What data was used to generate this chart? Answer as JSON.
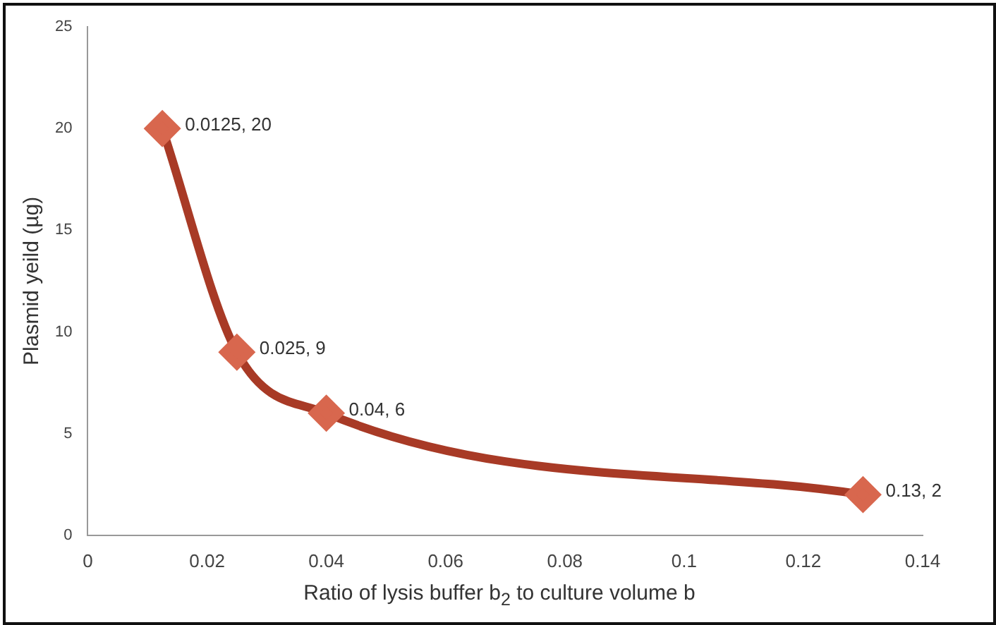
{
  "chart_data": {
    "type": "line",
    "xlabel": "Ratio of lysis buffer b$_{2}$ to culture  volume b",
    "ylabel": "Plasmid yeild (µg)",
    "x": [
      0.0125,
      0.025,
      0.04,
      0.13
    ],
    "series": [
      {
        "color": "#a83a26",
        "values": [
          20,
          9,
          6,
          2
        ],
        "value_labels": [
          "0.0125, 20",
          "0.025, 9",
          "0.04, 6",
          "0.13, 2"
        ]
      }
    ],
    "xlim": [
      0,
      0.14
    ],
    "xticks": [
      0,
      0.02,
      0.04,
      0.06,
      0.08,
      0.1,
      0.12,
      0.14
    ],
    "ylim": [
      0,
      25
    ],
    "yticks": [
      0,
      5,
      10,
      15,
      20,
      25
    ],
    "marker": "diamond",
    "grid": false,
    "legend": false
  }
}
